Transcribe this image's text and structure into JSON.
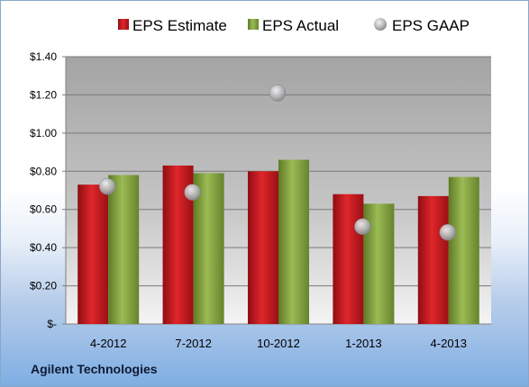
{
  "company": "Agilent Technologies",
  "colors": {
    "estimate": "#c0151b",
    "actual": "#7d9a3a",
    "gaap": "#a9abae"
  },
  "chart_data": {
    "type": "bar",
    "categories": [
      "4-2012",
      "7-2012",
      "10-2012",
      "1-2013",
      "4-2013"
    ],
    "series": [
      {
        "name": "EPS Estimate",
        "type": "bar",
        "values": [
          0.73,
          0.83,
          0.8,
          0.68,
          0.67
        ]
      },
      {
        "name": "EPS Actual",
        "type": "bar",
        "values": [
          0.78,
          0.79,
          0.86,
          0.63,
          0.77
        ]
      },
      {
        "name": "EPS GAAP",
        "type": "scatter",
        "values": [
          0.72,
          0.69,
          1.21,
          0.51,
          0.48
        ]
      }
    ],
    "yticks": [
      "$-",
      "$0.20",
      "$0.40",
      "$0.60",
      "$0.80",
      "$1.00",
      "$1.20",
      "$1.40"
    ],
    "ylim": [
      0,
      1.4
    ],
    "grid": true,
    "legend": "top"
  }
}
